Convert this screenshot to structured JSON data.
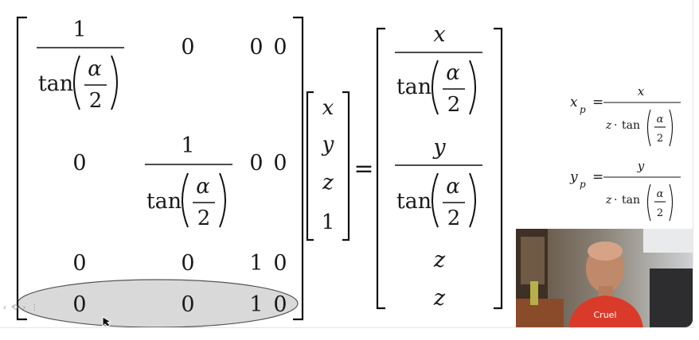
{
  "matrix": {
    "tan_text": "tan",
    "alpha": "α",
    "two": "2",
    "one": "1",
    "zero": "0",
    "row1": {
      "c2": "0",
      "c3": "0",
      "c4": "0"
    },
    "row2": {
      "c1": "0",
      "c3": "0",
      "c4": "0"
    },
    "row3": {
      "c1": "0",
      "c2": "0",
      "c3": "1",
      "c4": "0"
    },
    "row4": {
      "c1": "0",
      "c2": "0",
      "c3": "1",
      "c4": "0"
    }
  },
  "vector": {
    "x": "x",
    "y": "y",
    "z": "z",
    "w": "1"
  },
  "equals": "=",
  "result": {
    "num1": "x",
    "num2": "y",
    "r3": "z",
    "r4": "z"
  },
  "formulas": {
    "xp_base": "x",
    "xp_sub": "p",
    "xp_num": "x",
    "yp_base": "y",
    "yp_sub": "p",
    "yp_num": "y",
    "den_z": "z",
    "den_dot": "·",
    "den_tan": "tan"
  },
  "toolbar": {
    "buttons": [
      "‹",
      "⟲",
      "›",
      "⋮"
    ]
  },
  "webcam": {
    "shirt_text": "Cruel"
  },
  "colors": {
    "highlight_fill": "#d9d9d9",
    "highlight_stroke": "#555555",
    "ink": "#1a1a1a"
  }
}
